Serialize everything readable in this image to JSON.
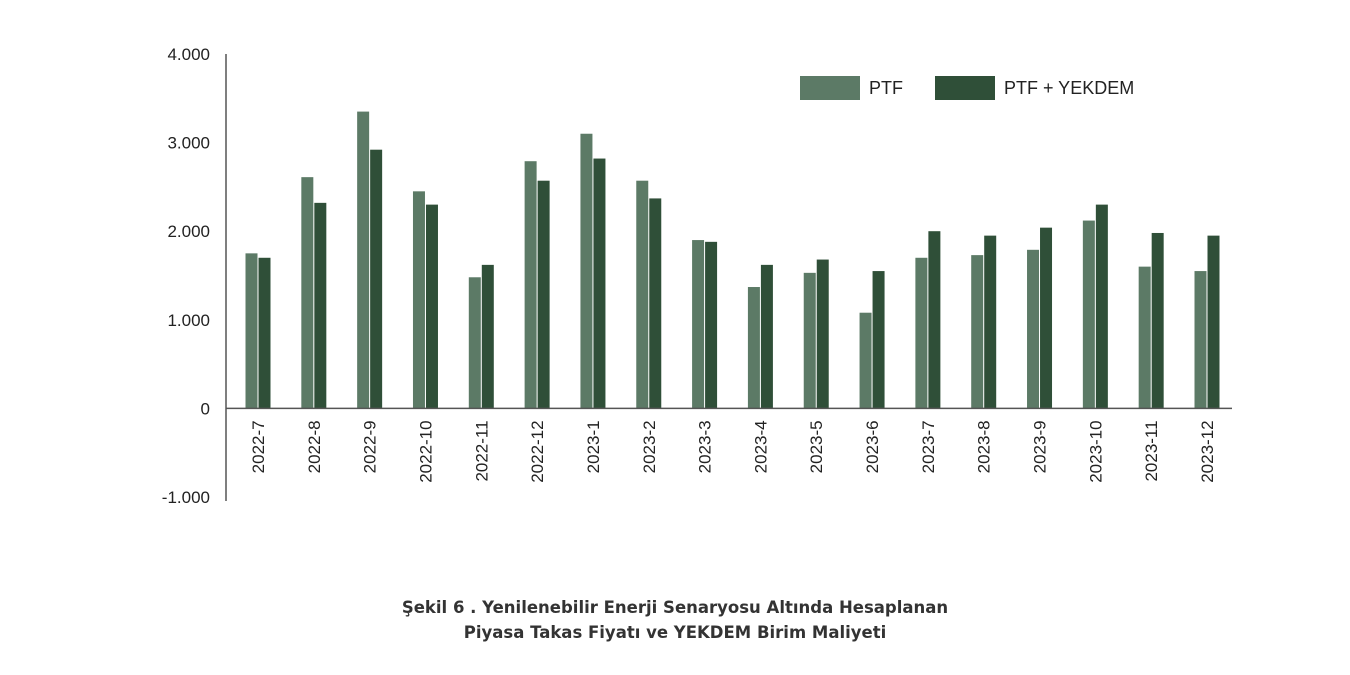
{
  "chart_data": {
    "type": "bar",
    "title": "",
    "xlabel": "",
    "ylabel": "",
    "ylim": [
      -1000,
      4000
    ],
    "y_ticks": [
      "4.000",
      "3.000",
      "2.000",
      "1.000",
      "0",
      "-1.000"
    ],
    "y_tick_values": [
      4000,
      3000,
      2000,
      1000,
      0,
      -1000
    ],
    "grid": false,
    "legend": "top-right",
    "categories": [
      "2022-7",
      "2022-8",
      "2022-9",
      "2022-10",
      "2022-11",
      "2022-12",
      "2023-1",
      "2023-2",
      "2023-3",
      "2023-4",
      "2023-5",
      "2023-6",
      "2023-7",
      "2023-8",
      "2023-9",
      "2023-10",
      "2023-11",
      "2023-12"
    ],
    "series": [
      {
        "name": "PTF",
        "color": "#5c7a66",
        "values": [
          1750,
          2610,
          3350,
          2450,
          1480,
          2790,
          3100,
          2570,
          1900,
          1370,
          1530,
          1080,
          1700,
          1730,
          1790,
          2120,
          1600,
          1550
        ]
      },
      {
        "name": "PTF + YEKDEM",
        "color": "#2f4f38",
        "values": [
          1700,
          2320,
          2920,
          2300,
          1620,
          2570,
          2820,
          2370,
          1880,
          1620,
          1680,
          1550,
          2000,
          1950,
          2040,
          2300,
          1980,
          1950
        ]
      }
    ],
    "caption_line1": "Şekil 6 . Yenilenebilir Enerji Senaryosu Altında Hesaplanan",
    "caption_line2": "Piyasa Takas Fiyatı ve YEKDEM Birim Maliyeti"
  }
}
